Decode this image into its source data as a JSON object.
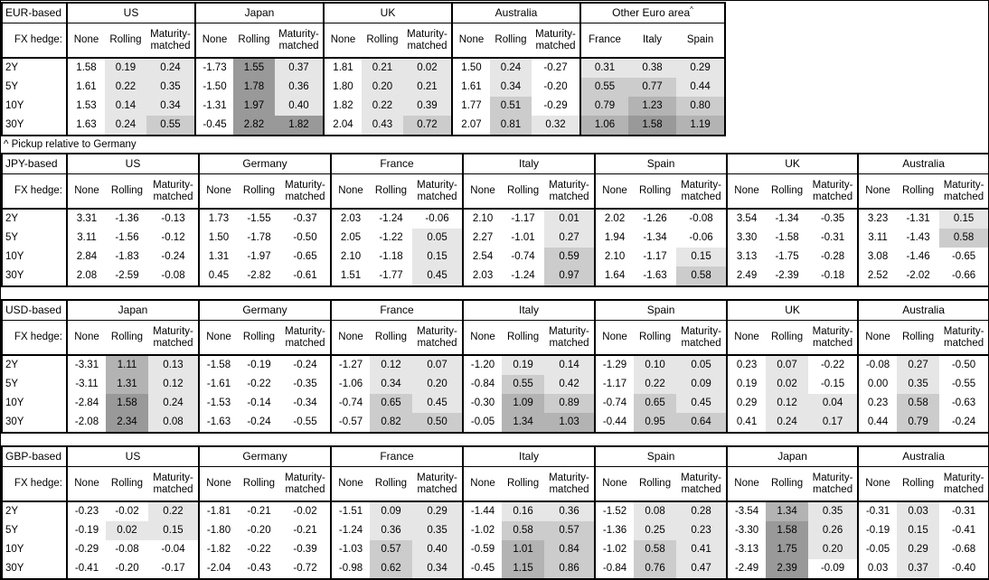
{
  "footnote": "^ Pickup relative to Germany",
  "fx_hedge_label": "FX hedge:",
  "row_labels": [
    "2Y",
    "5Y",
    "10Y",
    "30Y"
  ],
  "sub_headers": [
    "None",
    "Rolling",
    "Maturity-matched"
  ],
  "shading": {
    "description": "heatmap gray shading applied to hedged / pickup columns for values >= 0",
    "thresholds": [
      0.5,
      1.0,
      1.5
    ],
    "colors": [
      "#e6e6e6",
      "#cccccc",
      "#b3b3b3",
      "#999999"
    ],
    "border_color": "#000000",
    "background": "#ffffff"
  },
  "chart_data": [
    {
      "type": "table",
      "title": "EUR-based",
      "fx_hedge_label": "FX hedge:",
      "row_labels": [
        "2Y",
        "5Y",
        "10Y",
        "30Y"
      ],
      "full_width": false,
      "groups": [
        {
          "name": "US",
          "columns": [
            "None",
            "Rolling",
            "Maturity-matched"
          ],
          "shaded": [
            false,
            true,
            true
          ],
          "rows": [
            [
              "1.58",
              "0.19",
              "0.24"
            ],
            [
              "1.61",
              "0.22",
              "0.35"
            ],
            [
              "1.53",
              "0.14",
              "0.34"
            ],
            [
              "1.63",
              "0.24",
              "0.55"
            ]
          ]
        },
        {
          "name": "Japan",
          "columns": [
            "None",
            "Rolling",
            "Maturity-matched"
          ],
          "shaded": [
            false,
            true,
            true
          ],
          "rows": [
            [
              "-1.73",
              "1.55",
              "0.37"
            ],
            [
              "-1.50",
              "1.78",
              "0.36"
            ],
            [
              "-1.31",
              "1.97",
              "0.40"
            ],
            [
              "-0.45",
              "2.82",
              "1.82"
            ]
          ]
        },
        {
          "name": "UK",
          "columns": [
            "None",
            "Rolling",
            "Maturity-matched"
          ],
          "shaded": [
            false,
            true,
            true
          ],
          "rows": [
            [
              "1.81",
              "0.21",
              "0.02"
            ],
            [
              "1.80",
              "0.20",
              "0.21"
            ],
            [
              "1.82",
              "0.22",
              "0.39"
            ],
            [
              "2.04",
              "0.43",
              "0.72"
            ]
          ]
        },
        {
          "name": "Australia",
          "columns": [
            "None",
            "Rolling",
            "Maturity-matched"
          ],
          "shaded": [
            false,
            true,
            true
          ],
          "rows": [
            [
              "1.50",
              "0.24",
              "-0.27"
            ],
            [
              "1.61",
              "0.34",
              "-0.20"
            ],
            [
              "1.77",
              "0.51",
              "-0.29"
            ],
            [
              "2.07",
              "0.81",
              "0.32"
            ]
          ]
        },
        {
          "name": "Other Euro area",
          "sup": "^",
          "columns": [
            "France",
            "Italy",
            "Spain"
          ],
          "shaded": [
            true,
            true,
            true
          ],
          "rows": [
            [
              "0.31",
              "0.38",
              "0.29"
            ],
            [
              "0.55",
              "0.77",
              "0.44"
            ],
            [
              "0.79",
              "1.23",
              "0.80"
            ],
            [
              "1.06",
              "1.58",
              "1.19"
            ]
          ]
        }
      ]
    },
    {
      "type": "table",
      "title": "JPY-based",
      "fx_hedge_label": "FX hedge:",
      "row_labels": [
        "2Y",
        "5Y",
        "10Y",
        "30Y"
      ],
      "full_width": true,
      "groups": [
        {
          "name": "US",
          "columns": [
            "None",
            "Rolling",
            "Maturity-matched"
          ],
          "shaded": [
            false,
            true,
            true
          ],
          "rows": [
            [
              "3.31",
              "-1.36",
              "-0.13"
            ],
            [
              "3.11",
              "-1.56",
              "-0.12"
            ],
            [
              "2.84",
              "-1.83",
              "-0.24"
            ],
            [
              "2.08",
              "-2.59",
              "-0.08"
            ]
          ]
        },
        {
          "name": "Germany",
          "columns": [
            "None",
            "Rolling",
            "Maturity-matched"
          ],
          "shaded": [
            false,
            true,
            true
          ],
          "rows": [
            [
              "1.73",
              "-1.55",
              "-0.37"
            ],
            [
              "1.50",
              "-1.78",
              "-0.50"
            ],
            [
              "1.31",
              "-1.97",
              "-0.65"
            ],
            [
              "0.45",
              "-2.82",
              "-0.61"
            ]
          ]
        },
        {
          "name": "France",
          "columns": [
            "None",
            "Rolling",
            "Maturity-matched"
          ],
          "shaded": [
            false,
            true,
            true
          ],
          "rows": [
            [
              "2.03",
              "-1.24",
              "-0.06"
            ],
            [
              "2.05",
              "-1.22",
              "0.05"
            ],
            [
              "2.10",
              "-1.18",
              "0.15"
            ],
            [
              "1.51",
              "-1.77",
              "0.45"
            ]
          ]
        },
        {
          "name": "Italy",
          "columns": [
            "None",
            "Rolling",
            "Maturity-matched"
          ],
          "shaded": [
            false,
            true,
            true
          ],
          "rows": [
            [
              "2.10",
              "-1.17",
              "0.01"
            ],
            [
              "2.27",
              "-1.01",
              "0.27"
            ],
            [
              "2.54",
              "-0.74",
              "0.59"
            ],
            [
              "2.03",
              "-1.24",
              "0.97"
            ]
          ]
        },
        {
          "name": "Spain",
          "columns": [
            "None",
            "Rolling",
            "Maturity-matched"
          ],
          "shaded": [
            false,
            true,
            true
          ],
          "rows": [
            [
              "2.02",
              "-1.26",
              "-0.08"
            ],
            [
              "1.94",
              "-1.34",
              "-0.06"
            ],
            [
              "2.10",
              "-1.17",
              "0.15"
            ],
            [
              "1.64",
              "-1.63",
              "0.58"
            ]
          ]
        },
        {
          "name": "UK",
          "columns": [
            "None",
            "Rolling",
            "Maturity-matched"
          ],
          "shaded": [
            false,
            true,
            true
          ],
          "rows": [
            [
              "3.54",
              "-1.34",
              "-0.35"
            ],
            [
              "3.30",
              "-1.58",
              "-0.31"
            ],
            [
              "3.13",
              "-1.75",
              "-0.28"
            ],
            [
              "2.49",
              "-2.39",
              "-0.18"
            ]
          ]
        },
        {
          "name": "Australia",
          "columns": [
            "None",
            "Rolling",
            "Maturity-matched"
          ],
          "shaded": [
            false,
            true,
            true
          ],
          "rows": [
            [
              "3.23",
              "-1.31",
              "0.15"
            ],
            [
              "3.11",
              "-1.43",
              "0.58"
            ],
            [
              "3.08",
              "-1.46",
              "-0.65"
            ],
            [
              "2.52",
              "-2.02",
              "-0.66"
            ]
          ]
        }
      ]
    },
    {
      "type": "table",
      "title": "USD-based",
      "fx_hedge_label": "FX hedge:",
      "row_labels": [
        "2Y",
        "5Y",
        "10Y",
        "30Y"
      ],
      "full_width": true,
      "groups": [
        {
          "name": "Japan",
          "columns": [
            "None",
            "Rolling",
            "Maturity-matched"
          ],
          "shaded": [
            false,
            true,
            true
          ],
          "rows": [
            [
              "-3.31",
              "1.11",
              "0.13"
            ],
            [
              "-3.11",
              "1.31",
              "0.12"
            ],
            [
              "-2.84",
              "1.58",
              "0.24"
            ],
            [
              "-2.08",
              "2.34",
              "0.08"
            ]
          ]
        },
        {
          "name": "Germany",
          "columns": [
            "None",
            "Rolling",
            "Maturity-matched"
          ],
          "shaded": [
            false,
            true,
            true
          ],
          "rows": [
            [
              "-1.58",
              "-0.19",
              "-0.24"
            ],
            [
              "-1.61",
              "-0.22",
              "-0.35"
            ],
            [
              "-1.53",
              "-0.14",
              "-0.34"
            ],
            [
              "-1.63",
              "-0.24",
              "-0.55"
            ]
          ]
        },
        {
          "name": "France",
          "columns": [
            "None",
            "Rolling",
            "Maturity-matched"
          ],
          "shaded": [
            false,
            true,
            true
          ],
          "rows": [
            [
              "-1.27",
              "0.12",
              "0.07"
            ],
            [
              "-1.06",
              "0.34",
              "0.20"
            ],
            [
              "-0.74",
              "0.65",
              "0.45"
            ],
            [
              "-0.57",
              "0.82",
              "0.50"
            ]
          ]
        },
        {
          "name": "Italy",
          "columns": [
            "None",
            "Rolling",
            "Maturity-matched"
          ],
          "shaded": [
            false,
            true,
            true
          ],
          "rows": [
            [
              "-1.20",
              "0.19",
              "0.14"
            ],
            [
              "-0.84",
              "0.55",
              "0.42"
            ],
            [
              "-0.30",
              "1.09",
              "0.89"
            ],
            [
              "-0.05",
              "1.34",
              "1.03"
            ]
          ]
        },
        {
          "name": "Spain",
          "columns": [
            "None",
            "Rolling",
            "Maturity-matched"
          ],
          "shaded": [
            false,
            true,
            true
          ],
          "rows": [
            [
              "-1.29",
              "0.10",
              "0.05"
            ],
            [
              "-1.17",
              "0.22",
              "0.09"
            ],
            [
              "-0.74",
              "0.65",
              "0.45"
            ],
            [
              "-0.44",
              "0.95",
              "0.64"
            ]
          ]
        },
        {
          "name": "UK",
          "columns": [
            "None",
            "Rolling",
            "Maturity-matched"
          ],
          "shaded": [
            false,
            true,
            true
          ],
          "rows": [
            [
              "0.23",
              "0.07",
              "-0.22"
            ],
            [
              "0.19",
              "0.02",
              "-0.15"
            ],
            [
              "0.29",
              "0.12",
              "0.04"
            ],
            [
              "0.41",
              "0.24",
              "0.17"
            ]
          ]
        },
        {
          "name": "Australia",
          "columns": [
            "None",
            "Rolling",
            "Maturity-matched"
          ],
          "shaded": [
            false,
            true,
            true
          ],
          "rows": [
            [
              "-0.08",
              "0.27",
              "-0.50"
            ],
            [
              "0.00",
              "0.35",
              "-0.55"
            ],
            [
              "0.23",
              "0.58",
              "-0.63"
            ],
            [
              "0.44",
              "0.79",
              "-0.24"
            ]
          ]
        }
      ]
    },
    {
      "type": "table",
      "title": "GBP-based",
      "fx_hedge_label": "FX hedge:",
      "row_labels": [
        "2Y",
        "5Y",
        "10Y",
        "30Y"
      ],
      "full_width": true,
      "groups": [
        {
          "name": "US",
          "columns": [
            "None",
            "Rolling",
            "Maturity-matched"
          ],
          "shaded": [
            false,
            true,
            true
          ],
          "rows": [
            [
              "-0.23",
              "-0.02",
              "0.22"
            ],
            [
              "-0.19",
              "0.02",
              "0.15"
            ],
            [
              "-0.29",
              "-0.08",
              "-0.04"
            ],
            [
              "-0.41",
              "-0.20",
              "-0.17"
            ]
          ]
        },
        {
          "name": "Germany",
          "columns": [
            "None",
            "Rolling",
            "Maturity-matched"
          ],
          "shaded": [
            false,
            true,
            true
          ],
          "rows": [
            [
              "-1.81",
              "-0.21",
              "-0.02"
            ],
            [
              "-1.80",
              "-0.20",
              "-0.21"
            ],
            [
              "-1.82",
              "-0.22",
              "-0.39"
            ],
            [
              "-2.04",
              "-0.43",
              "-0.72"
            ]
          ]
        },
        {
          "name": "France",
          "columns": [
            "None",
            "Rolling",
            "Maturity-matched"
          ],
          "shaded": [
            false,
            true,
            true
          ],
          "rows": [
            [
              "-1.51",
              "0.09",
              "0.29"
            ],
            [
              "-1.24",
              "0.36",
              "0.35"
            ],
            [
              "-1.03",
              "0.57",
              "0.40"
            ],
            [
              "-0.98",
              "0.62",
              "0.34"
            ]
          ]
        },
        {
          "name": "Italy",
          "columns": [
            "None",
            "Rolling",
            "Maturity-matched"
          ],
          "shaded": [
            false,
            true,
            true
          ],
          "rows": [
            [
              "-1.44",
              "0.16",
              "0.36"
            ],
            [
              "-1.02",
              "0.58",
              "0.57"
            ],
            [
              "-0.59",
              "1.01",
              "0.84"
            ],
            [
              "-0.45",
              "1.15",
              "0.86"
            ]
          ]
        },
        {
          "name": "Spain",
          "columns": [
            "None",
            "Rolling",
            "Maturity-matched"
          ],
          "shaded": [
            false,
            true,
            true
          ],
          "rows": [
            [
              "-1.52",
              "0.08",
              "0.28"
            ],
            [
              "-1.36",
              "0.25",
              "0.23"
            ],
            [
              "-1.02",
              "0.58",
              "0.41"
            ],
            [
              "-0.84",
              "0.76",
              "0.47"
            ]
          ]
        },
        {
          "name": "Japan",
          "columns": [
            "None",
            "Rolling",
            "Maturity-matched"
          ],
          "shaded": [
            false,
            true,
            true
          ],
          "rows": [
            [
              "-3.54",
              "1.34",
              "0.35"
            ],
            [
              "-3.30",
              "1.58",
              "0.26"
            ],
            [
              "-3.13",
              "1.75",
              "0.20"
            ],
            [
              "-2.49",
              "2.39",
              "-0.09"
            ]
          ]
        },
        {
          "name": "Australia",
          "columns": [
            "None",
            "Rolling",
            "Maturity-matched"
          ],
          "shaded": [
            false,
            true,
            true
          ],
          "rows": [
            [
              "-0.31",
              "0.03",
              "-0.31"
            ],
            [
              "-0.19",
              "0.15",
              "-0.41"
            ],
            [
              "-0.05",
              "0.29",
              "-0.68"
            ],
            [
              "0.03",
              "0.37",
              "-0.40"
            ]
          ]
        }
      ]
    }
  ]
}
